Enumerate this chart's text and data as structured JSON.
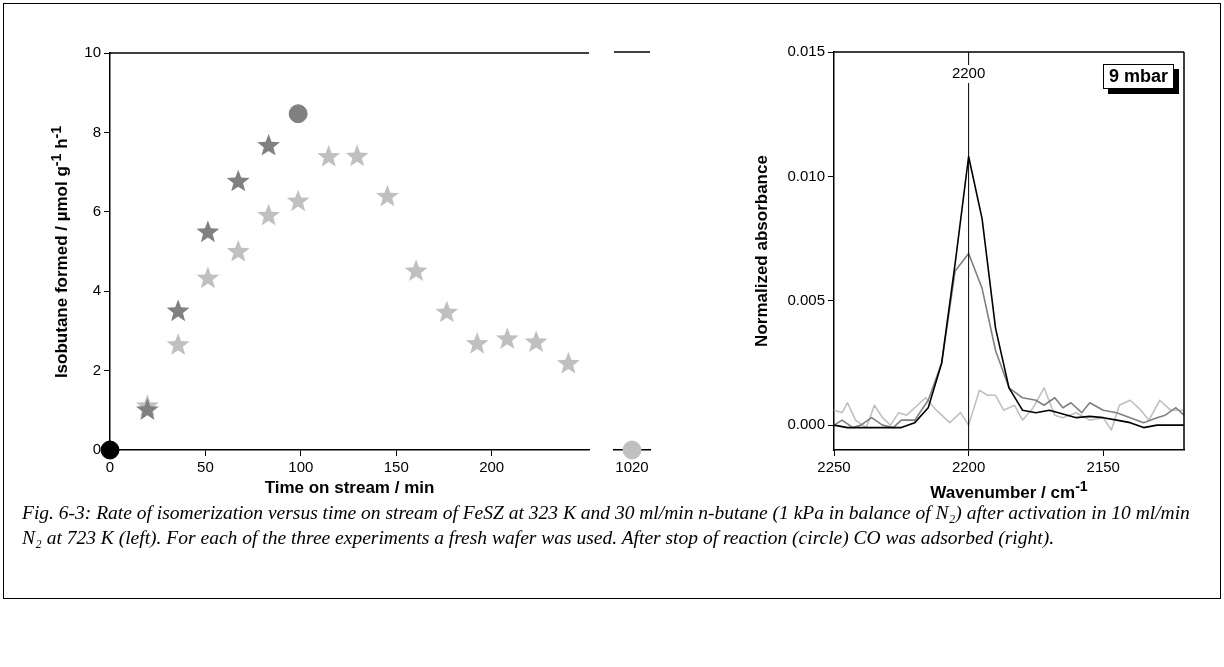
{
  "chart_data": [
    {
      "type": "scatter",
      "xlabel": "Time on stream / min",
      "ylabel": "Isobutane formed / µmol g$^{-1}$ h$^{-1}$",
      "xlim": [
        0,
        251
      ],
      "xticks": [
        0,
        50,
        100,
        150,
        200
      ],
      "ylim": [
        0,
        10
      ],
      "yticks": [
        0,
        2,
        4,
        6,
        8,
        10
      ],
      "grid": false,
      "legend": false,
      "series": [
        {
          "color": "#c0c0c0",
          "marker": "star",
          "x": [
            19.6,
            35.7,
            51.3,
            67.2,
            83.1,
            98.6,
            114.6,
            129.5,
            145.4,
            160.4,
            176.5,
            192.4,
            208.2,
            223.3,
            240.2
          ],
          "values": [
            1.1,
            2.64,
            4.32,
            4.99,
            5.9,
            6.26,
            7.38,
            7.39,
            6.38,
            4.5,
            3.46,
            2.67,
            2.79,
            2.71,
            2.17
          ]
        },
        {
          "color": "#808080",
          "marker": "star",
          "x": [
            19.6,
            35.7,
            51.3,
            67.2,
            83.1
          ],
          "values": [
            1.0,
            3.49,
            5.48,
            6.76,
            7.66
          ]
        },
        {
          "color": "#808080",
          "marker": "circle",
          "x": [
            98.6
          ],
          "values": [
            8.47
          ]
        },
        {
          "color": "#000000",
          "marker": "circle",
          "x": [
            0
          ],
          "values": [
            0
          ]
        }
      ],
      "annotations": [
        "Fig. 6-3: Rate of isomerization versus time on stream of FeSZ at 323 K and 30 ml/min n-butane (1 kPa in balance of N₂) after activation in 10 ml/min N₂ at 723 K (left). For each of the three experiments a fresh wafer was used. After stop of reaction (circle) CO was adsorbed (right)."
      ]
    },
    {
      "type": "scatter",
      "categories": [
        "1020"
      ],
      "ylim": [
        0,
        10
      ],
      "yticks": [
        0,
        2,
        4,
        6,
        8,
        10
      ],
      "tick_labels": "x",
      "grid": false,
      "legend": false,
      "series": [
        {
          "color": "#c0c0c0",
          "marker": "circle",
          "values": [
            0
          ]
        }
      ]
    },
    {
      "type": "line",
      "xlabel": "Wavenumber / cm$^{-1}$",
      "ylabel": "Normalized absorbance",
      "xlim": [
        2250,
        2120
      ],
      "xticks": [
        2250,
        2200,
        2150
      ],
      "ylim": [
        -0.001,
        0.015
      ],
      "yticks": [
        {
          "value": 0,
          "label": "0.000"
        },
        {
          "value": 0.005,
          "label": "0.005"
        },
        {
          "value": 0.01,
          "label": "0.010"
        },
        {
          "value": 0.015,
          "label": "0.015"
        }
      ],
      "grid": false,
      "legend": false,
      "ref_lines": [
        {
          "axis": "x",
          "value": 2200,
          "label": "2200",
          "color": "#000000"
        }
      ],
      "annotations": [
        "9 mbar"
      ],
      "series": [
        {
          "color": "#c0c0c0",
          "x": [
            2250,
            2247,
            2245,
            2242,
            2238,
            2235,
            2232,
            2229,
            2226,
            2223,
            2219,
            2216,
            2212,
            2207,
            2203,
            2200,
            2196,
            2193,
            2190,
            2187,
            2183,
            2180,
            2176,
            2172,
            2168,
            2165,
            2160,
            2155,
            2150,
            2147,
            2144,
            2140,
            2136,
            2133,
            2129,
            2125,
            2120
          ],
          "values": [
            0.0006,
            0.0005,
            0.0009,
            0.0002,
            -0.0001,
            0.0008,
            0.0003,
            0.0,
            0.0005,
            0.0004,
            0.0008,
            0.0011,
            0.0006,
            0.0001,
            0.0005,
            0.0,
            0.0014,
            0.0012,
            0.0012,
            0.0006,
            0.0008,
            0.0002,
            0.0007,
            0.0015,
            0.0004,
            0.0003,
            0.0005,
            0.0002,
            0.0003,
            -0.0002,
            0.0008,
            0.001,
            0.0006,
            0.0002,
            0.001,
            0.0006,
            0.0006
          ]
        },
        {
          "color": "#808080",
          "x": [
            2250,
            2247,
            2243,
            2240,
            2236,
            2232,
            2228,
            2225,
            2220,
            2215,
            2210,
            2205,
            2200,
            2195,
            2190,
            2185,
            2180,
            2175,
            2172,
            2168,
            2165,
            2162,
            2158,
            2155,
            2150,
            2145,
            2140,
            2135,
            2130,
            2127,
            2123,
            2120
          ],
          "values": [
            0.0,
            0.0002,
            -0.0001,
            0.0,
            0.0003,
            0.0,
            -0.0001,
            0.0002,
            0.0002,
            0.001,
            0.0025,
            0.0062,
            0.0069,
            0.0055,
            0.003,
            0.0015,
            0.0011,
            0.001,
            0.0008,
            0.0011,
            0.0007,
            0.0009,
            0.0005,
            0.0009,
            0.0006,
            0.0005,
            0.0003,
            0.0001,
            0.0003,
            0.0004,
            0.0007,
            0.0004
          ]
        },
        {
          "color": "#000000",
          "x": [
            2250,
            2245,
            2240,
            2235,
            2230,
            2225,
            2220,
            2215,
            2210,
            2205,
            2200,
            2195,
            2190,
            2185,
            2180,
            2175,
            2170,
            2165,
            2160,
            2155,
            2150,
            2145,
            2140,
            2135,
            2130,
            2125,
            2120
          ],
          "values": [
            0.0,
            -0.0001,
            -0.0001,
            -0.0001,
            -0.0001,
            -0.0001,
            0.0001,
            0.0007,
            0.0025,
            0.0065,
            0.0108,
            0.0083,
            0.0039,
            0.0015,
            0.0006,
            0.0005,
            0.0006,
            0.00045,
            0.0003,
            0.00035,
            0.0003,
            0.0002,
            0.0001,
            -0.0001,
            0.0,
            0.0,
            0.0
          ]
        }
      ]
    }
  ]
}
